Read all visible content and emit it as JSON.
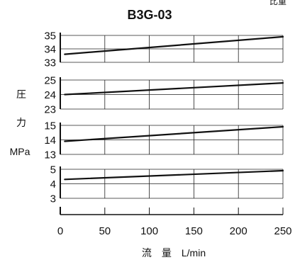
{
  "chart_data": {
    "type": "line",
    "title": "B3G-03",
    "corner_text": "比重",
    "xlabel": "流　量　L/min",
    "ylabel_lines": [
      "圧",
      "力",
      "MPa"
    ],
    "xlim": [
      0,
      250
    ],
    "x_ticks": [
      0,
      50,
      100,
      150,
      200,
      250
    ],
    "x_tick_labels": [
      "0",
      "50",
      "100",
      "150",
      "200",
      "250"
    ],
    "grid": true,
    "panels": [
      {
        "ylim": [
          33,
          35
        ],
        "y_ticks": [
          33,
          34,
          35
        ],
        "y_tick_labels": [
          "33",
          "34",
          "35"
        ],
        "series": [
          {
            "x": [
              5,
              250
            ],
            "y": [
              33.6,
              34.9
            ]
          }
        ]
      },
      {
        "ylim": [
          23,
          25
        ],
        "y_ticks": [
          23,
          24,
          25
        ],
        "y_tick_labels": [
          "23",
          "24",
          "25"
        ],
        "series": [
          {
            "x": [
              5,
              250
            ],
            "y": [
              24.0,
              24.8
            ]
          }
        ]
      },
      {
        "ylim": [
          13,
          15
        ],
        "y_ticks": [
          13,
          14,
          15
        ],
        "y_tick_labels": [
          "13",
          "14",
          "15"
        ],
        "series": [
          {
            "x": [
              5,
              250
            ],
            "y": [
              13.9,
              14.9
            ]
          }
        ]
      },
      {
        "ylim": [
          3,
          5
        ],
        "y_ticks": [
          3,
          4,
          5
        ],
        "y_tick_labels": [
          "3",
          "4",
          "5"
        ],
        "series": [
          {
            "x": [
              5,
              250
            ],
            "y": [
              4.3,
              4.9
            ]
          }
        ]
      }
    ]
  }
}
